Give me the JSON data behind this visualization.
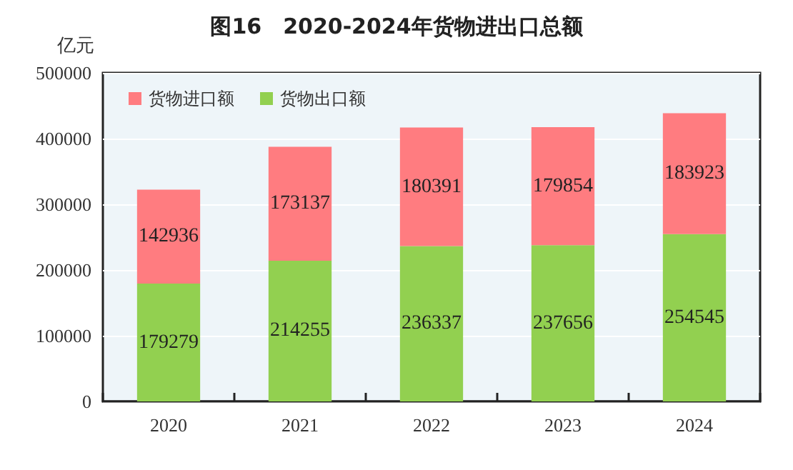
{
  "chart_data": {
    "type": "bar",
    "title": "图16　2020-2024年货物进出口总额",
    "ylabel": "亿元",
    "categories": [
      "2020",
      "2021",
      "2022",
      "2023",
      "2024"
    ],
    "stacked": true,
    "series": [
      {
        "name": "货物出口额",
        "color": "#92d050",
        "values": [
          179279,
          214255,
          236337,
          237656,
          254545
        ]
      },
      {
        "name": "货物进口额",
        "color": "#ff7c80",
        "values": [
          142936,
          173137,
          180391,
          179854,
          183923
        ]
      }
    ],
    "ylim": [
      0,
      500000
    ],
    "yticks": [
      0,
      100000,
      200000,
      300000,
      400000,
      500000
    ],
    "grid": "y",
    "legend": "top left",
    "data_labels": true
  }
}
